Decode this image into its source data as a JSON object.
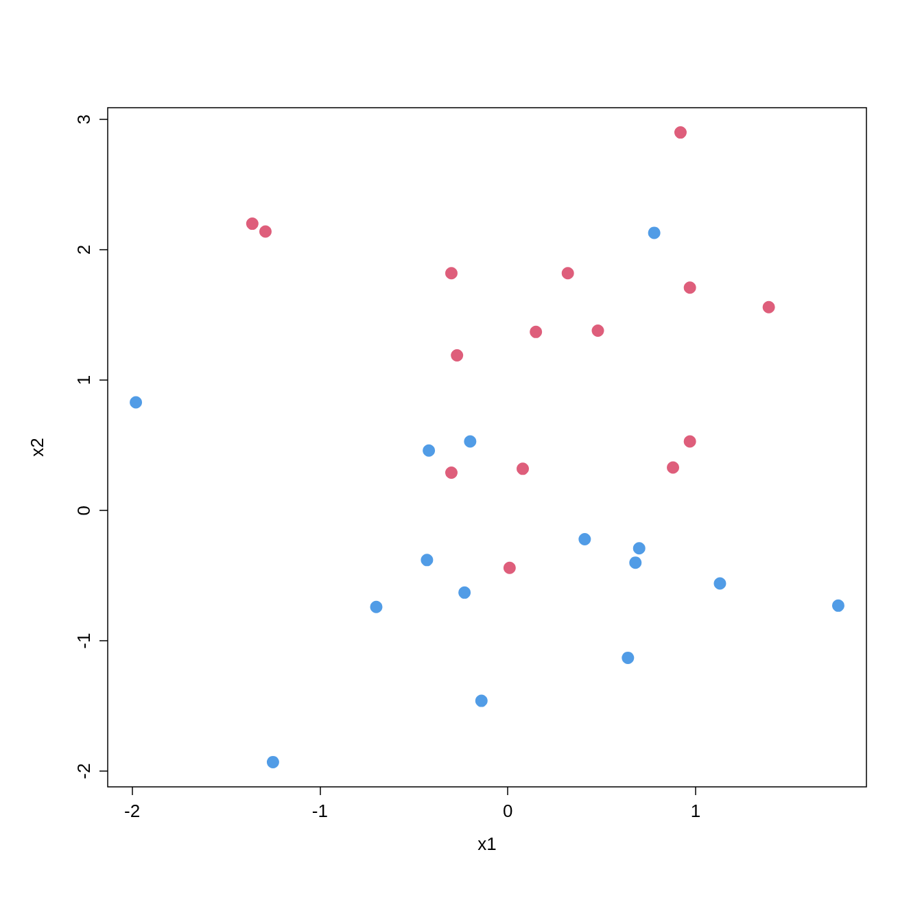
{
  "chart_data": {
    "type": "scatter",
    "xlabel": "x1",
    "ylabel": "x2",
    "marker": "circle",
    "grid": false,
    "xlim": [
      -2.13,
      1.91
    ],
    "ylim": [
      -2.12,
      3.09
    ],
    "xticks": [
      -2,
      -1,
      0,
      1
    ],
    "yticks": [
      -2,
      -1,
      0,
      1,
      2,
      3
    ],
    "series": [
      {
        "color": "#d6365a",
        "x": [
          0.92,
          -1.36,
          -1.29,
          -0.3,
          0.32,
          0.97,
          1.39,
          0.15,
          0.48,
          -0.27,
          0.97,
          0.88,
          0.08,
          -0.3,
          0.01
        ],
        "values": [
          2.9,
          2.2,
          2.14,
          1.82,
          1.82,
          1.71,
          1.56,
          1.37,
          1.38,
          1.19,
          0.53,
          0.33,
          0.32,
          0.29,
          -0.44
        ]
      },
      {
        "color": "#2583e0",
        "x": [
          0.78,
          -1.98,
          -0.2,
          -0.42,
          0.41,
          0.7,
          0.68,
          -0.43,
          -0.23,
          -0.7,
          1.13,
          1.76,
          0.64,
          -0.14,
          -1.25
        ],
        "values": [
          2.13,
          0.83,
          0.53,
          0.46,
          -0.22,
          -0.29,
          -0.4,
          -0.38,
          -0.63,
          -0.74,
          -0.56,
          -0.73,
          -1.13,
          -1.46,
          -1.93
        ]
      }
    ]
  }
}
